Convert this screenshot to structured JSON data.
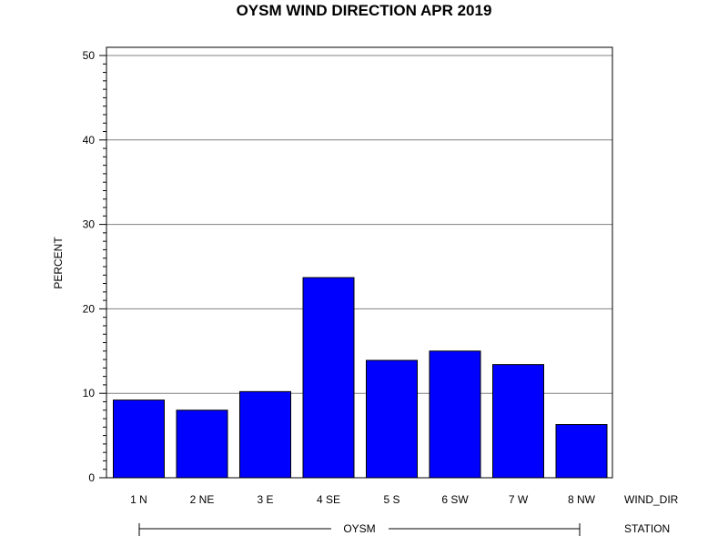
{
  "chart_data": {
    "type": "bar",
    "title": "OYSM WIND DIRECTION APR 2019",
    "ylabel": "PERCENT",
    "xlabel": "WIND_DIR",
    "group_label": "STATION",
    "group_name": "OYSM",
    "categories": [
      "1 N",
      "2 NE",
      "3 E",
      "4 SE",
      "5 S",
      "6 SW",
      "7 W",
      "8 NW"
    ],
    "values": [
      9.2,
      8.0,
      10.2,
      23.7,
      13.9,
      15.0,
      13.4,
      6.3
    ],
    "ylim": [
      0,
      50
    ],
    "yticks": [
      "0",
      "10",
      "20",
      "30",
      "40",
      "50"
    ],
    "grid": true,
    "bar_color": "#0000ff"
  }
}
